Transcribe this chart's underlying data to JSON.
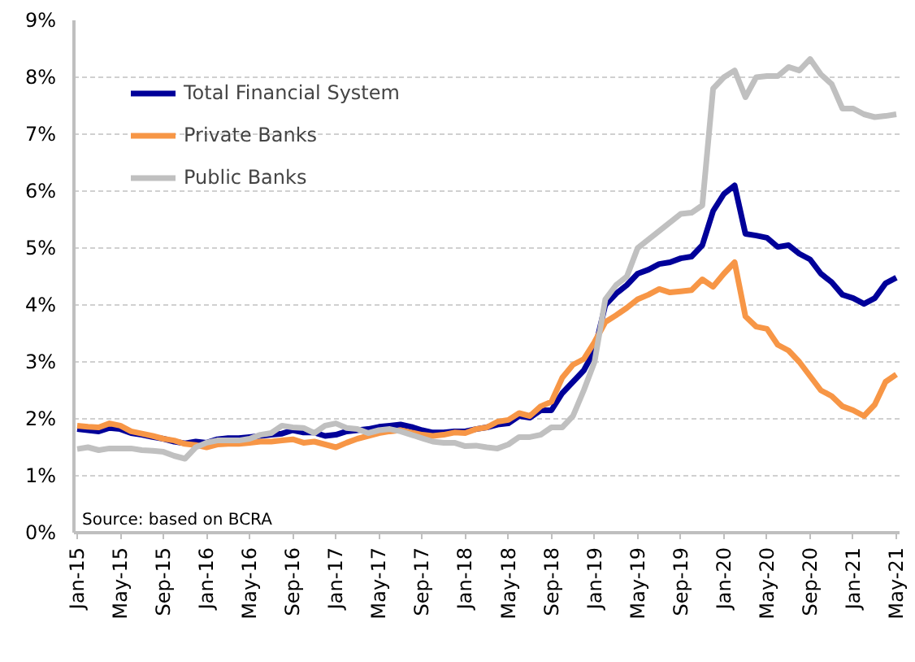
{
  "chart_data": {
    "type": "line",
    "categories": [
      "Jan-15",
      null,
      null,
      null,
      "May-15",
      null,
      null,
      null,
      "Sep-15",
      null,
      null,
      null,
      "Jan-16",
      null,
      null,
      null,
      "May-16",
      null,
      null,
      null,
      "Sep-16",
      null,
      null,
      null,
      "Jan-17",
      null,
      null,
      null,
      "May-17",
      null,
      null,
      null,
      "Sep-17",
      null,
      null,
      null,
      "Jan-18",
      null,
      null,
      null,
      "May-18",
      null,
      null,
      null,
      "Sep-18",
      null,
      null,
      null,
      "Jan-19",
      null,
      null,
      null,
      "May-19",
      null,
      null,
      null,
      "Sep-19",
      null,
      null,
      null,
      "Jan-20",
      null,
      null,
      null,
      "May-20",
      null,
      null,
      null,
      "Sep-20",
      null,
      null,
      null,
      "Jan-21",
      null,
      null,
      null,
      "May-21"
    ],
    "series": [
      {
        "name": "Total Financial System",
        "color": "#000099",
        "values": [
          1.82,
          1.8,
          1.78,
          1.84,
          1.82,
          1.75,
          1.72,
          1.68,
          1.65,
          1.6,
          1.57,
          1.6,
          1.58,
          1.64,
          1.66,
          1.66,
          1.68,
          1.7,
          1.72,
          1.74,
          1.8,
          1.76,
          1.76,
          1.7,
          1.72,
          1.78,
          1.8,
          1.82,
          1.86,
          1.88,
          1.9,
          1.86,
          1.8,
          1.76,
          1.76,
          1.78,
          1.78,
          1.82,
          1.85,
          1.9,
          1.92,
          2.05,
          2.02,
          2.15,
          2.15,
          2.45,
          2.65,
          2.85,
          3.2,
          4.0,
          4.2,
          4.35,
          4.55,
          4.62,
          4.72,
          4.75,
          4.82,
          4.85,
          5.05,
          5.65,
          5.95,
          6.1,
          5.25,
          5.22,
          5.18,
          5.02,
          5.05,
          4.9,
          4.8,
          4.55,
          4.4,
          4.18,
          4.12,
          4.02,
          4.12,
          4.38,
          4.48
        ]
      },
      {
        "name": "Private Banks",
        "color": "#f79646",
        "values": [
          1.88,
          1.86,
          1.85,
          1.92,
          1.88,
          1.78,
          1.74,
          1.7,
          1.65,
          1.62,
          1.56,
          1.54,
          1.5,
          1.55,
          1.56,
          1.56,
          1.58,
          1.6,
          1.6,
          1.62,
          1.64,
          1.58,
          1.6,
          1.55,
          1.5,
          1.58,
          1.65,
          1.7,
          1.75,
          1.78,
          1.8,
          1.76,
          1.72,
          1.7,
          1.72,
          1.76,
          1.75,
          1.82,
          1.85,
          1.95,
          1.98,
          2.1,
          2.05,
          2.22,
          2.3,
          2.72,
          2.95,
          3.05,
          3.35,
          3.7,
          3.82,
          3.95,
          4.1,
          4.18,
          4.28,
          4.22,
          4.24,
          4.26,
          4.45,
          4.32,
          4.55,
          4.75,
          3.8,
          3.62,
          3.58,
          3.3,
          3.2,
          3.0,
          2.75,
          2.5,
          2.4,
          2.22,
          2.15,
          2.05,
          2.25,
          2.65,
          2.78
        ]
      },
      {
        "name": "Public Banks",
        "color": "#c0c0c0",
        "values": [
          1.47,
          1.5,
          1.45,
          1.48,
          1.48,
          1.48,
          1.45,
          1.44,
          1.42,
          1.35,
          1.3,
          1.5,
          1.58,
          1.62,
          1.62,
          1.62,
          1.65,
          1.72,
          1.75,
          1.88,
          1.85,
          1.84,
          1.75,
          1.88,
          1.92,
          1.84,
          1.82,
          1.75,
          1.8,
          1.82,
          1.78,
          1.72,
          1.66,
          1.6,
          1.58,
          1.58,
          1.52,
          1.53,
          1.5,
          1.48,
          1.55,
          1.68,
          1.68,
          1.72,
          1.85,
          1.85,
          2.05,
          2.5,
          3.0,
          4.1,
          4.35,
          4.5,
          5.0,
          5.15,
          5.3,
          5.45,
          5.6,
          5.62,
          5.75,
          7.8,
          8.0,
          8.12,
          7.65,
          8.0,
          8.02,
          8.02,
          8.18,
          8.12,
          8.32,
          8.05,
          7.88,
          7.45,
          7.45,
          7.35,
          7.3,
          7.32,
          7.35
        ]
      }
    ],
    "ylim": [
      0,
      9
    ],
    "yticks": [
      {
        "value": 0,
        "label": "0%"
      },
      {
        "value": 1,
        "label": "1%"
      },
      {
        "value": 2,
        "label": "2%"
      },
      {
        "value": 3,
        "label": "3%"
      },
      {
        "value": 4,
        "label": "4%"
      },
      {
        "value": 5,
        "label": "5%"
      },
      {
        "value": 6,
        "label": "6%"
      },
      {
        "value": 7,
        "label": "7%"
      },
      {
        "value": 8,
        "label": "8%"
      },
      {
        "value": 9,
        "label": "9%"
      }
    ],
    "grid": "y",
    "legend": "top left",
    "marker": "none",
    "line_style": "solid",
    "annotations": [
      "Source: based on BCRA"
    ]
  }
}
